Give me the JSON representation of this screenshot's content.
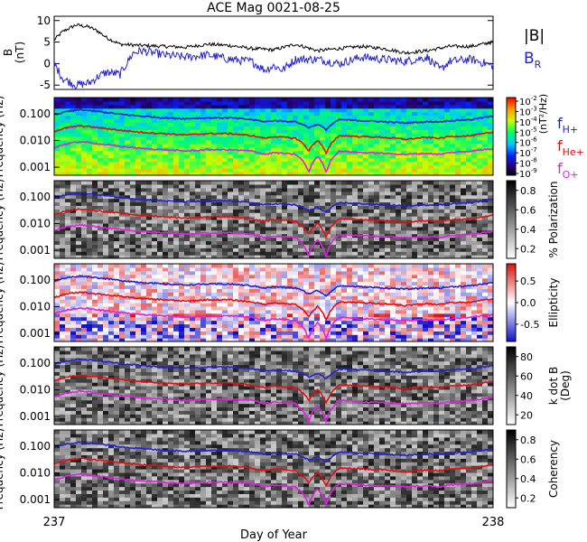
{
  "chart_data": {
    "title": "ACE Mag 0021-08-25",
    "xlabel": "Day of Year",
    "xticks": [
      "237",
      "238"
    ],
    "xlim": [
      237,
      238
    ],
    "panels": [
      {
        "type": "line",
        "ylabel_lines": [
          "B",
          "(nT)"
        ],
        "ylim": [
          -6,
          11
        ],
        "yticks": [
          "10",
          "5",
          "0",
          "-5"
        ],
        "legend": [
          {
            "label": "|B|",
            "color": "#000000"
          },
          {
            "label": "B",
            "sub": "R",
            "color": "#2222cc"
          }
        ],
        "series": [
          {
            "key": "Bmag",
            "color": "#000000",
            "x": [
              237.0,
              237.02,
              237.05,
              237.08,
              237.1,
              237.12,
              237.15,
              237.2,
              237.25,
              237.3,
              237.35,
              237.4,
              237.45,
              237.5,
              237.55,
              237.6,
              237.65,
              237.7,
              237.75,
              237.8,
              237.85,
              237.9,
              237.95,
              238.0
            ],
            "values": [
              5.5,
              7.5,
              9.0,
              8.5,
              7.5,
              6.0,
              4.5,
              4.2,
              4.0,
              3.8,
              4.5,
              4.2,
              3.5,
              3.2,
              4.5,
              3.0,
              3.5,
              4.0,
              3.5,
              2.5,
              3.0,
              4.0,
              4.0,
              5.0
            ]
          },
          {
            "key": "BR",
            "color": "#2222cc",
            "x": [
              237.0,
              237.02,
              237.05,
              237.08,
              237.1,
              237.12,
              237.15,
              237.18,
              237.2,
              237.25,
              237.3,
              237.35,
              237.4,
              237.45,
              237.48,
              237.5,
              237.52,
              237.55,
              237.6,
              237.65,
              237.7,
              237.75,
              237.8,
              237.85,
              237.88,
              237.9,
              237.95,
              238.0
            ],
            "values": [
              0.0,
              -3.5,
              -5.0,
              -4.5,
              -3.0,
              -2.0,
              -2.5,
              2.5,
              3.0,
              2.0,
              1.5,
              2.0,
              1.0,
              0.5,
              -1.5,
              -0.5,
              -1.5,
              1.0,
              1.0,
              0.0,
              1.5,
              1.0,
              0.5,
              1.5,
              -1.5,
              0.5,
              1.0,
              -0.5
            ]
          }
        ]
      },
      {
        "type": "heatmap",
        "ylabel_lines": [
          "Frequency",
          "(Hz)"
        ],
        "ytick_labels": [
          "0.100",
          "0.010",
          "0.001"
        ],
        "ytick_values": [
          0.1,
          0.01,
          0.001
        ],
        "ylim": [
          0.0005,
          0.4
        ],
        "colormap": "rainbow",
        "colorbar_ticks": [
          "10",
          "10",
          "10",
          "10",
          "10",
          "10",
          "10",
          "10"
        ],
        "colorbar_tick_exponents": [
          "-2",
          "-3",
          "-4",
          "-5",
          "-6",
          "-7",
          "-8",
          "-9"
        ],
        "colorbar_label": "(nT²/Hz)",
        "legend": [
          {
            "label": "f",
            "sub": "H+",
            "color": "#2222cc"
          },
          {
            "label": "f",
            "sub": "He+",
            "color": "#dd1111"
          },
          {
            "label": "f",
            "sub": "O+",
            "color": "#dd22dd"
          }
        ]
      },
      {
        "type": "heatmap",
        "ylabel_lines": [
          "Frequency",
          "(Hz)"
        ],
        "ytick_labels": [
          "0.100",
          "0.010",
          "0.001"
        ],
        "ytick_values": [
          0.1,
          0.01,
          0.001
        ],
        "ylim": [
          0.0005,
          0.4
        ],
        "colormap": "gray",
        "colorbar_ticks": [
          "0.8",
          "0.6",
          "0.4",
          "0.2"
        ],
        "colorbar_tick_values": [
          0.8,
          0.6,
          0.4,
          0.2
        ],
        "colorbar_range": [
          0.1,
          0.9
        ],
        "colorbar_label": "% Polarization"
      },
      {
        "type": "heatmap",
        "ylabel_lines": [
          "Frequency",
          "(Hz)"
        ],
        "ytick_labels": [
          "0.100",
          "0.010",
          "0.001"
        ],
        "ytick_values": [
          0.1,
          0.01,
          0.001
        ],
        "ylim": [
          0.0005,
          0.4
        ],
        "colormap": "bwr",
        "colorbar_ticks": [
          "0.5",
          "0.0",
          "-0.5"
        ],
        "colorbar_tick_values": [
          0.5,
          0.0,
          -0.5
        ],
        "colorbar_range": [
          -0.9,
          0.9
        ],
        "colorbar_label": "Ellipticity"
      },
      {
        "type": "heatmap",
        "ylabel_lines": [
          "Frequency",
          "(Hz)"
        ],
        "ytick_labels": [
          "0.100",
          "0.010",
          "0.001"
        ],
        "ytick_values": [
          0.1,
          0.01,
          0.001
        ],
        "ylim": [
          0.0005,
          0.4
        ],
        "colormap": "gray",
        "colorbar_ticks": [
          "80",
          "60",
          "40",
          "20"
        ],
        "colorbar_tick_values": [
          80,
          60,
          40,
          20
        ],
        "colorbar_range": [
          10,
          90
        ],
        "colorbar_label_lines": [
          "k dot B",
          "(Deg)"
        ]
      },
      {
        "type": "heatmap",
        "ylabel_lines": [
          "Frequency",
          "(Hz)"
        ],
        "ytick_labels": [
          "0.100",
          "0.010",
          "0.001"
        ],
        "ytick_values": [
          0.1,
          0.01,
          0.001
        ],
        "ylim": [
          0.0005,
          0.4
        ],
        "colormap": "gray",
        "colorbar_ticks": [
          "0.8",
          "0.6",
          "0.4",
          "0.2"
        ],
        "colorbar_tick_values": [
          0.8,
          0.6,
          0.4,
          0.2
        ],
        "colorbar_range": [
          0.1,
          0.9
        ],
        "colorbar_label": "Coherency"
      }
    ],
    "gyrofrequency_curves": [
      {
        "key": "fH",
        "color": "#2222cc",
        "x": [
          237.0,
          237.03,
          237.06,
          237.1,
          237.15,
          237.2,
          237.25,
          237.3,
          237.35,
          237.4,
          237.45,
          237.48,
          237.5,
          237.55,
          237.58,
          237.6,
          237.62,
          237.65,
          237.7,
          237.75,
          237.8,
          237.85,
          237.88,
          237.9,
          237.95,
          238.0
        ],
        "values": [
          0.09,
          0.12,
          0.14,
          0.12,
          0.095,
          0.08,
          0.07,
          0.065,
          0.07,
          0.07,
          0.06,
          0.05,
          0.055,
          0.05,
          0.03,
          0.04,
          0.025,
          0.06,
          0.055,
          0.05,
          0.045,
          0.05,
          0.05,
          0.055,
          0.06,
          0.08
        ]
      },
      {
        "key": "fHe",
        "color": "#dd1111",
        "x": [
          237.0,
          237.03,
          237.06,
          237.1,
          237.15,
          237.2,
          237.25,
          237.3,
          237.35,
          237.4,
          237.45,
          237.48,
          237.5,
          237.55,
          237.58,
          237.6,
          237.62,
          237.65,
          237.7,
          237.75,
          237.8,
          237.85,
          237.88,
          237.9,
          237.95,
          238.0
        ],
        "values": [
          0.022,
          0.03,
          0.035,
          0.03,
          0.024,
          0.02,
          0.018,
          0.016,
          0.018,
          0.018,
          0.015,
          0.012,
          0.014,
          0.012,
          0.004,
          0.01,
          0.003,
          0.015,
          0.014,
          0.013,
          0.011,
          0.013,
          0.012,
          0.014,
          0.015,
          0.02
        ]
      },
      {
        "key": "fO",
        "color": "#dd22dd",
        "x": [
          237.0,
          237.03,
          237.06,
          237.1,
          237.15,
          237.2,
          237.25,
          237.3,
          237.35,
          237.4,
          237.45,
          237.48,
          237.5,
          237.55,
          237.58,
          237.6,
          237.62,
          237.65,
          237.7,
          237.75,
          237.8,
          237.85,
          237.88,
          237.9,
          237.95,
          238.0
        ],
        "values": [
          0.0055,
          0.0075,
          0.009,
          0.0075,
          0.006,
          0.005,
          0.0045,
          0.004,
          0.0045,
          0.0045,
          0.004,
          0.003,
          0.0035,
          0.003,
          0.0006,
          0.0025,
          0.0006,
          0.004,
          0.0035,
          0.0033,
          0.003,
          0.0033,
          0.003,
          0.0035,
          0.004,
          0.005
        ]
      }
    ]
  }
}
